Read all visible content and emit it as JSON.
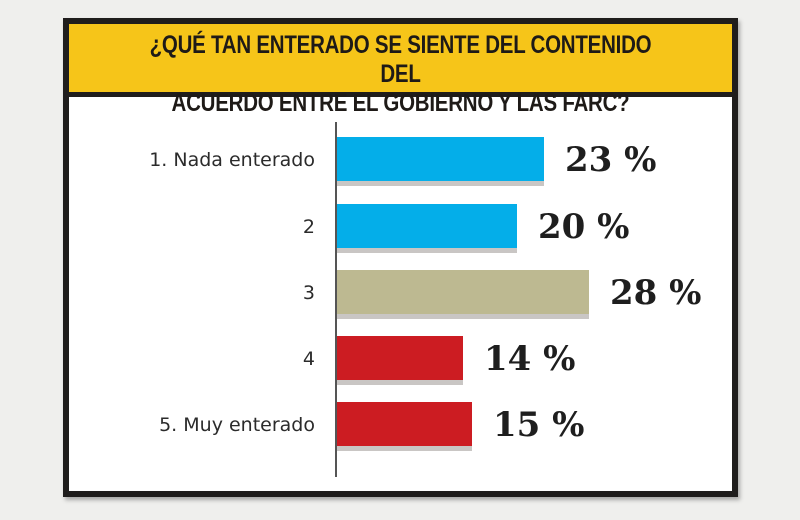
{
  "chart_data": {
    "type": "bar",
    "orientation": "horizontal",
    "title": "¿QUÉ TAN ENTERADO SE SIENTE DEL CONTENIDO DEL\nACUERDO ENTRE EL GOBIERNO Y LAS FARC?",
    "categories": [
      "1. Nada enterado",
      "2",
      "3",
      "4",
      "5. Muy enterado"
    ],
    "values": [
      23,
      20,
      28,
      14,
      15
    ],
    "value_labels": [
      "23 %",
      "20 %",
      "28 %",
      "14 %",
      "15 %"
    ],
    "colors": [
      "#04aee9",
      "#04aee9",
      "#bdb991",
      "#cc1c22",
      "#cc1c22"
    ],
    "xlim": [
      0,
      30
    ],
    "grid": false,
    "xlabel": "",
    "ylabel": ""
  }
}
